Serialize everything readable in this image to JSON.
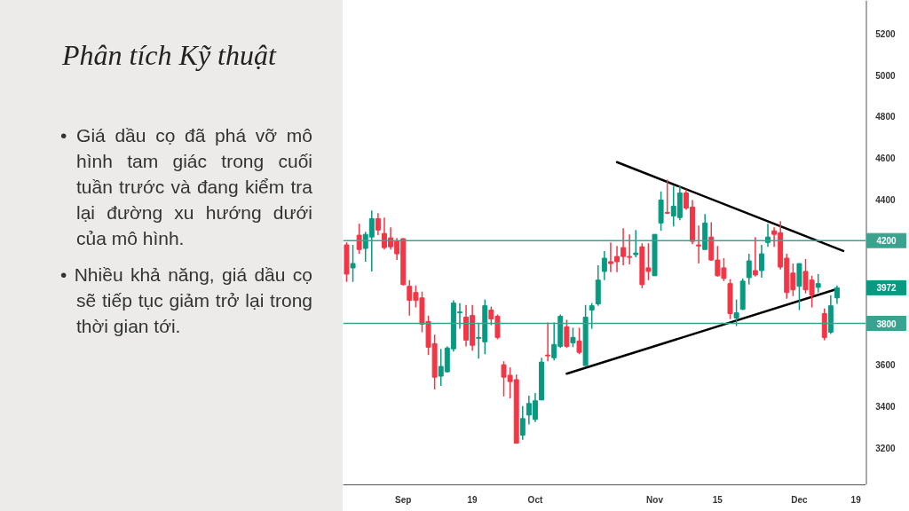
{
  "chart_data": {
    "type": "candlestick",
    "title": "Phân tích Kỹ thuật",
    "annotations": [
      "• Giá dầu cọ đã phá vỡ mô hình tam giác trong cuối tuần trước và đang kiểm tra lại đường xu hướng dưới của mô hình.",
      "• Nhiều khả năng, giá dầu cọ sẽ tiếp tục giảm trở lại trong thời gian tới.",
      "3972"
    ],
    "categories": [
      null,
      null,
      null,
      null,
      null,
      null,
      null,
      null,
      null,
      "Sep",
      null,
      null,
      null,
      null,
      null,
      null,
      null,
      null,
      null,
      null,
      "19",
      null,
      null,
      null,
      null,
      null,
      null,
      null,
      null,
      null,
      "Oct",
      null,
      null,
      null,
      null,
      null,
      null,
      null,
      null,
      null,
      null,
      null,
      null,
      null,
      null,
      null,
      null,
      null,
      null,
      "Nov",
      null,
      null,
      null,
      null,
      null,
      null,
      null,
      null,
      null,
      "15",
      null,
      null,
      null,
      null,
      null,
      null,
      null,
      null,
      null,
      null,
      null,
      null,
      "Dec",
      null,
      null,
      null,
      null,
      null,
      null,
      null,
      null,
      "19",
      null
    ],
    "ohlc": [
      [
        4179,
        4191,
        4000,
        4038
      ],
      [
        4068,
        4179,
        4000,
        4089
      ],
      [
        4226,
        4281,
        4136,
        4157
      ],
      [
        4162,
        4243,
        4098,
        4230
      ],
      [
        4217,
        4345,
        4051,
        4306
      ],
      [
        4306,
        4332,
        4226,
        4251
      ],
      [
        4234,
        4311,
        4157,
        4166
      ],
      [
        4213,
        4264,
        4157,
        4170
      ],
      [
        4196,
        4213,
        4106,
        4136
      ],
      [
        4209,
        4213,
        3983,
        3987
      ],
      [
        3979,
        4009,
        3838,
        3911
      ],
      [
        3949,
        3983,
        3877,
        3911
      ],
      [
        3923,
        3953,
        3757,
        3796
      ],
      [
        3809,
        3838,
        3647,
        3685
      ],
      [
        3702,
        3745,
        3481,
        3540
      ],
      [
        3545,
        3677,
        3498,
        3592
      ],
      [
        3566,
        3689,
        3562,
        3681
      ],
      [
        3677,
        3911,
        3664,
        3898
      ],
      [
        3851,
        3898,
        3774,
        3855
      ],
      [
        3830,
        3889,
        3689,
        3719
      ],
      [
        3838,
        3889,
        3668,
        3694
      ],
      [
        3728,
        3800,
        3630,
        3732
      ],
      [
        3711,
        3915,
        3651,
        3885
      ],
      [
        3864,
        3881,
        3791,
        3821
      ],
      [
        3834,
        3843,
        3723,
        3732
      ],
      [
        3600,
        3617,
        3447,
        3540
      ],
      [
        3549,
        3587,
        3438,
        3519
      ],
      [
        3528,
        3553,
        3221,
        3221
      ],
      [
        3260,
        3400,
        3238,
        3340
      ],
      [
        3357,
        3451,
        3311,
        3413
      ],
      [
        3336,
        3464,
        3323,
        3426
      ],
      [
        3430,
        3634,
        3430,
        3613
      ],
      [
        3647,
        3804,
        3617,
        3643
      ],
      [
        3634,
        3804,
        3621,
        3698
      ],
      [
        3689,
        3843,
        3681,
        3834
      ],
      [
        3783,
        3817,
        3681,
        3689
      ],
      [
        3706,
        3779,
        3685,
        3732
      ],
      [
        3715,
        3779,
        3651,
        3660
      ],
      [
        3596,
        3889,
        3596,
        3830
      ],
      [
        3864,
        3898,
        3774,
        3885
      ],
      [
        3894,
        4081,
        3885,
        4009
      ],
      [
        4051,
        4149,
        4009,
        4115
      ],
      [
        4098,
        4191,
        4047,
        4089
      ],
      [
        4123,
        4174,
        4047,
        4098
      ],
      [
        4166,
        4260,
        4081,
        4123
      ],
      [
        4123,
        4230,
        4085,
        4119
      ],
      [
        4132,
        4251,
        4119,
        4140
      ],
      [
        4170,
        4187,
        3970,
        3987
      ],
      [
        4068,
        4187,
        4009,
        4051
      ],
      [
        4030,
        4230,
        4030,
        4230
      ],
      [
        4285,
        4438,
        4247,
        4396
      ],
      [
        4336,
        4494,
        4328,
        4332
      ],
      [
        4319,
        4464,
        4268,
        4366
      ],
      [
        4311,
        4464,
        4298,
        4430
      ],
      [
        4430,
        4447,
        4349,
        4357
      ],
      [
        4362,
        4396,
        4183,
        4196
      ],
      [
        4179,
        4272,
        4089,
        4174
      ],
      [
        4157,
        4328,
        4157,
        4285
      ],
      [
        4217,
        4289,
        4102,
        4106
      ],
      [
        4106,
        4174,
        4026,
        4030
      ],
      [
        4068,
        4115,
        4004,
        4017
      ],
      [
        3992,
        4013,
        3821,
        3847
      ],
      [
        3826,
        3915,
        3787,
        3851
      ],
      [
        3868,
        4017,
        3864,
        4004
      ],
      [
        4021,
        4136,
        3987,
        4102
      ],
      [
        4055,
        4217,
        4026,
        4034
      ],
      [
        4055,
        4179,
        4021,
        4136
      ],
      [
        4191,
        4281,
        4170,
        4217
      ],
      [
        4247,
        4264,
        4170,
        4230
      ],
      [
        4238,
        4294,
        4060,
        4072
      ],
      [
        4115,
        4136,
        3919,
        3949
      ],
      [
        4043,
        4089,
        3932,
        3962
      ],
      [
        3979,
        4089,
        3864,
        4089
      ],
      [
        4051,
        4111,
        3945,
        3962
      ],
      [
        4009,
        4030,
        3877,
        3936
      ],
      [
        3974,
        4038,
        3949,
        3992
      ],
      [
        3847,
        3872,
        3719,
        3732
      ],
      [
        3757,
        3936,
        3749,
        3885
      ],
      [
        3923,
        3983,
        3894,
        3972
      ],
      null,
      null,
      null,
      null
    ],
    "colors": [
      "#f23645",
      "#089981",
      "#f23645",
      "#089981",
      "#089981",
      "#f23645",
      "#f23645",
      "#f23645",
      "#f23645",
      "#f23645",
      "#f23645",
      "#f23645",
      "#f23645",
      "#f23645",
      "#f23645",
      "#089981",
      "#089981",
      "#089981",
      "#089981",
      "#f23645",
      "#f23645",
      "#089981",
      "#089981",
      "#f23645",
      "#f23645",
      "#f23645",
      "#f23645",
      "#f23645",
      "#089981",
      "#089981",
      "#089981",
      "#089981",
      "#f23645",
      "#089981",
      "#089981",
      "#f23645",
      "#089981",
      "#f23645",
      "#089981",
      "#089981",
      "#089981",
      "#089981",
      "#f23645",
      "#f23645",
      "#f23645",
      "#f23645",
      "#089981",
      "#f23645",
      "#f23645",
      "#089981",
      "#089981",
      "#f23645",
      "#089981",
      "#089981",
      "#f23645",
      "#f23645",
      "#f23645",
      "#089981",
      "#f23645",
      "#f23645",
      "#f23645",
      "#f23645",
      "#089981",
      "#089981",
      "#089981",
      "#f23645",
      "#089981",
      "#089981",
      "#f23645",
      "#f23645",
      "#f23645",
      "#f23645",
      "#089981",
      "#f23645",
      "#f23645",
      "#089981",
      "#f23645",
      "#089981",
      "#089981",
      null,
      null,
      null,
      null
    ],
    "series": [
      {
        "type": "line",
        "color": "#000000",
        "values": [
          null,
          null,
          null,
          null,
          null,
          null,
          null,
          null,
          null,
          null,
          null,
          null,
          null,
          null,
          null,
          null,
          null,
          null,
          null,
          null,
          null,
          null,
          null,
          null,
          null,
          null,
          null,
          null,
          null,
          null,
          null,
          null,
          null,
          null,
          null,
          null,
          null,
          null,
          null,
          null,
          null,
          null,
          null,
          4579,
          null,
          null,
          null,
          null,
          null,
          null,
          null,
          null,
          null,
          null,
          null,
          null,
          null,
          null,
          null,
          null,
          null,
          null,
          null,
          null,
          null,
          null,
          null,
          null,
          null,
          null,
          null,
          null,
          null,
          null,
          null,
          null,
          null,
          null,
          null,
          4150,
          null,
          null,
          null
        ]
      },
      {
        "type": "line",
        "color": "#000000",
        "values": [
          null,
          null,
          null,
          null,
          null,
          null,
          null,
          null,
          null,
          null,
          null,
          null,
          null,
          null,
          null,
          null,
          null,
          null,
          null,
          null,
          null,
          null,
          null,
          null,
          null,
          null,
          null,
          null,
          null,
          null,
          null,
          null,
          null,
          null,
          null,
          3557,
          null,
          null,
          null,
          null,
          null,
          null,
          null,
          null,
          null,
          null,
          null,
          null,
          null,
          null,
          null,
          null,
          null,
          null,
          null,
          null,
          null,
          null,
          null,
          null,
          null,
          null,
          null,
          null,
          null,
          null,
          null,
          null,
          null,
          null,
          null,
          null,
          null,
          null,
          null,
          null,
          null,
          null,
          3966,
          null,
          null,
          null,
          null
        ]
      }
    ],
    "ref_lines": [
      {
        "axis": "y",
        "value": 4200,
        "label": "4200",
        "color": "#3aa38f"
      },
      {
        "axis": "y",
        "value": 3800,
        "label": "3800",
        "color": "#3aa38f"
      }
    ],
    "ylim": [
      3020,
      5360
    ],
    "yticks": [
      3200,
      3400,
      3600,
      4400,
      4600,
      4800,
      5000,
      5200
    ],
    "grid": false
  }
}
